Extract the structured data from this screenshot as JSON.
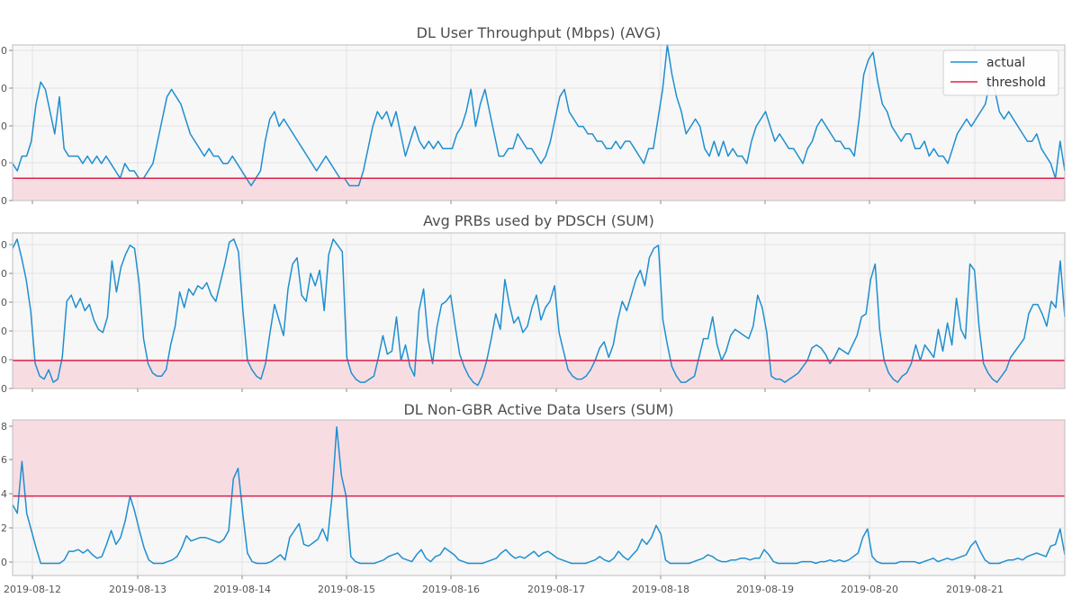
{
  "colors": {
    "actual": "#1f8fd0",
    "threshold": "#e0204a",
    "band": "#f7dde2",
    "plot_bg": "#f7f7f7",
    "grid": "#e3e3e3"
  },
  "legend": {
    "actual": "actual",
    "threshold": "threshold",
    "placement": "top-right of first panel"
  },
  "chart_data": [
    {
      "type": "line",
      "title": "DL User Throughput (Mbps) (AVG)",
      "y_tick_labels": [
        "0",
        "0",
        "0",
        "0",
        "0"
      ],
      "ylim": [
        0,
        21
      ],
      "threshold": 3,
      "band": "below",
      "x_tick_labels": [],
      "values": [
        5,
        4,
        6,
        6,
        8,
        13,
        16,
        15,
        12,
        9,
        14,
        7,
        6,
        6,
        6,
        5,
        6,
        5,
        6,
        5,
        6,
        5,
        4,
        3,
        5,
        4,
        4,
        3,
        3,
        4,
        5,
        8,
        11,
        14,
        15,
        14,
        13,
        11,
        9,
        8,
        7,
        6,
        7,
        6,
        6,
        5,
        5,
        6,
        5,
        4,
        3,
        2,
        3,
        4,
        8,
        11,
        12,
        10,
        11,
        10,
        9,
        8,
        7,
        6,
        5,
        4,
        5,
        6,
        5,
        4,
        3,
        3,
        2,
        2,
        2,
        4,
        7,
        10,
        12,
        11,
        12,
        10,
        12,
        9,
        6,
        8,
        10,
        8,
        7,
        8,
        7,
        8,
        7,
        7,
        7,
        9,
        10,
        12,
        15,
        10,
        13,
        15,
        12,
        9,
        6,
        6,
        7,
        7,
        9,
        8,
        7,
        7,
        6,
        5,
        6,
        8,
        11,
        14,
        15,
        12,
        11,
        10,
        10,
        9,
        9,
        8,
        8,
        7,
        7,
        8,
        7,
        8,
        8,
        7,
        6,
        5,
        7,
        7,
        11,
        15,
        21,
        17,
        14,
        12,
        9,
        10,
        11,
        10,
        7,
        6,
        8,
        6,
        8,
        6,
        7,
        6,
        6,
        5,
        8,
        10,
        11,
        12,
        10,
        8,
        9,
        8,
        7,
        7,
        6,
        5,
        7,
        8,
        10,
        11,
        10,
        9,
        8,
        8,
        7,
        7,
        6,
        11,
        17,
        19,
        20,
        16,
        13,
        12,
        10,
        9,
        8,
        9,
        9,
        7,
        7,
        8,
        6,
        7,
        6,
        6,
        5,
        7,
        9,
        10,
        11,
        10,
        11,
        12,
        13,
        16,
        15,
        12,
        11,
        12,
        11,
        10,
        9,
        8,
        8,
        9,
        7,
        6,
        5,
        3,
        8,
        4
      ],
      "x_positions": []
    },
    {
      "type": "line",
      "title": "Avg PRBs used by PDSCH (SUM)",
      "y_tick_labels": [
        "0",
        "0",
        "0",
        "0",
        "0",
        "0"
      ],
      "ylim": [
        0,
        50
      ],
      "threshold": 9,
      "band": "below",
      "values": [
        45,
        48,
        42,
        35,
        25,
        8,
        4,
        3,
        6,
        2,
        3,
        10,
        28,
        30,
        26,
        29,
        25,
        27,
        22,
        19,
        18,
        23,
        41,
        31,
        39,
        43,
        46,
        45,
        34,
        16,
        8,
        5,
        4,
        4,
        6,
        14,
        20,
        31,
        26,
        32,
        30,
        33,
        32,
        34,
        30,
        28,
        34,
        40,
        47,
        48,
        44,
        25,
        9,
        6,
        4,
        3,
        8,
        18,
        27,
        22,
        17,
        32,
        40,
        42,
        30,
        28,
        37,
        33,
        38,
        25,
        43,
        48,
        46,
        44,
        10,
        5,
        3,
        2,
        2,
        3,
        4,
        10,
        17,
        11,
        12,
        23,
        9,
        14,
        7,
        4,
        25,
        32,
        16,
        8,
        20,
        27,
        28,
        30,
        20,
        11,
        7,
        4,
        2,
        1,
        4,
        9,
        16,
        24,
        19,
        35,
        27,
        21,
        23,
        18,
        20,
        26,
        30,
        22,
        26,
        28,
        33,
        18,
        12,
        6,
        4,
        3,
        3,
        4,
        6,
        9,
        13,
        15,
        10,
        14,
        22,
        28,
        25,
        30,
        35,
        38,
        33,
        42,
        45,
        46,
        22,
        14,
        7,
        4,
        2,
        2,
        3,
        4,
        10,
        16,
        16,
        23,
        14,
        9,
        12,
        17,
        19,
        18,
        17,
        16,
        20,
        30,
        26,
        18,
        4,
        3,
        3,
        2,
        3,
        4,
        5,
        7,
        9,
        13,
        14,
        13,
        11,
        8,
        10,
        13,
        12,
        11,
        14,
        17,
        23,
        24,
        35,
        40,
        19,
        9,
        5,
        3,
        2,
        4,
        5,
        8,
        14,
        9,
        14,
        12,
        10,
        19,
        12,
        21,
        14,
        29,
        19,
        16,
        40,
        38,
        20,
        8,
        5,
        3,
        2,
        4,
        6,
        10,
        12,
        14,
        16,
        24,
        27,
        27,
        24,
        20,
        28,
        26,
        41,
        23
      ],
      "x_positions": []
    },
    {
      "type": "line",
      "title": "DL Non-GBR Active Data Users (SUM)",
      "y_tick_labels": [
        "0",
        "2",
        "4",
        "6",
        "8"
      ],
      "ylim": [
        -0.6,
        8.4
      ],
      "threshold": 4,
      "band": "above",
      "x_tick_labels": [
        "2019-08-12",
        "2019-08-13",
        "2019-08-14",
        "2019-08-15",
        "2019-08-16",
        "2019-08-17",
        "2019-08-18",
        "2019-08-19",
        "2019-08-20",
        "2019-08-21"
      ],
      "values": [
        3.5,
        3,
        6,
        3,
        2,
        1,
        0.1,
        0.1,
        0.1,
        0.1,
        0.1,
        0.3,
        0.8,
        0.8,
        0.9,
        0.7,
        0.9,
        0.6,
        0.4,
        0.5,
        1.2,
        2,
        1.2,
        1.6,
        2.6,
        4,
        3.1,
        2,
        1,
        0.3,
        0.1,
        0.1,
        0.1,
        0.2,
        0.3,
        0.5,
        1,
        1.7,
        1.4,
        1.5,
        1.6,
        1.6,
        1.5,
        1.4,
        1.3,
        1.5,
        2,
        5,
        5.6,
        3,
        0.7,
        0.2,
        0.1,
        0.1,
        0.1,
        0.2,
        0.4,
        0.6,
        0.3,
        1.6,
        2,
        2.4,
        1.2,
        1.1,
        1.3,
        1.5,
        2.1,
        1.4,
        4,
        8,
        5.2,
        4,
        0.5,
        0.2,
        0.1,
        0.1,
        0.1,
        0.1,
        0.2,
        0.3,
        0.5,
        0.6,
        0.7,
        0.4,
        0.3,
        0.2,
        0.6,
        0.9,
        0.4,
        0.2,
        0.5,
        0.6,
        1,
        0.8,
        0.6,
        0.3,
        0.2,
        0.1,
        0.1,
        0.1,
        0.1,
        0.2,
        0.3,
        0.4,
        0.7,
        0.9,
        0.6,
        0.4,
        0.5,
        0.4,
        0.6,
        0.8,
        0.5,
        0.7,
        0.8,
        0.6,
        0.4,
        0.3,
        0.2,
        0.1,
        0.1,
        0.1,
        0.1,
        0.2,
        0.3,
        0.5,
        0.3,
        0.2,
        0.4,
        0.8,
        0.5,
        0.3,
        0.6,
        0.9,
        1.5,
        1.2,
        1.6,
        2.3,
        1.8,
        0.3,
        0.1,
        0.1,
        0.1,
        0.1,
        0.1,
        0.2,
        0.3,
        0.4,
        0.6,
        0.5,
        0.3,
        0.2,
        0.2,
        0.3,
        0.3,
        0.4,
        0.4,
        0.3,
        0.4,
        0.4,
        0.9,
        0.6,
        0.2,
        0.1,
        0.1,
        0.1,
        0.1,
        0.1,
        0.2,
        0.2,
        0.2,
        0.1,
        0.2,
        0.2,
        0.3,
        0.2,
        0.3,
        0.2,
        0.3,
        0.5,
        0.7,
        1.6,
        2.1,
        0.5,
        0.2,
        0.1,
        0.1,
        0.1,
        0.1,
        0.2,
        0.2,
        0.2,
        0.2,
        0.1,
        0.2,
        0.3,
        0.4,
        0.2,
        0.3,
        0.4,
        0.3,
        0.4,
        0.5,
        0.6,
        1.1,
        1.4,
        0.8,
        0.3,
        0.1,
        0.1,
        0.1,
        0.2,
        0.3,
        0.3,
        0.4,
        0.3,
        0.5,
        0.6,
        0.7,
        0.6,
        0.5,
        1.1,
        1.2,
        2.1,
        0.6
      ],
      "x_positions": []
    }
  ]
}
